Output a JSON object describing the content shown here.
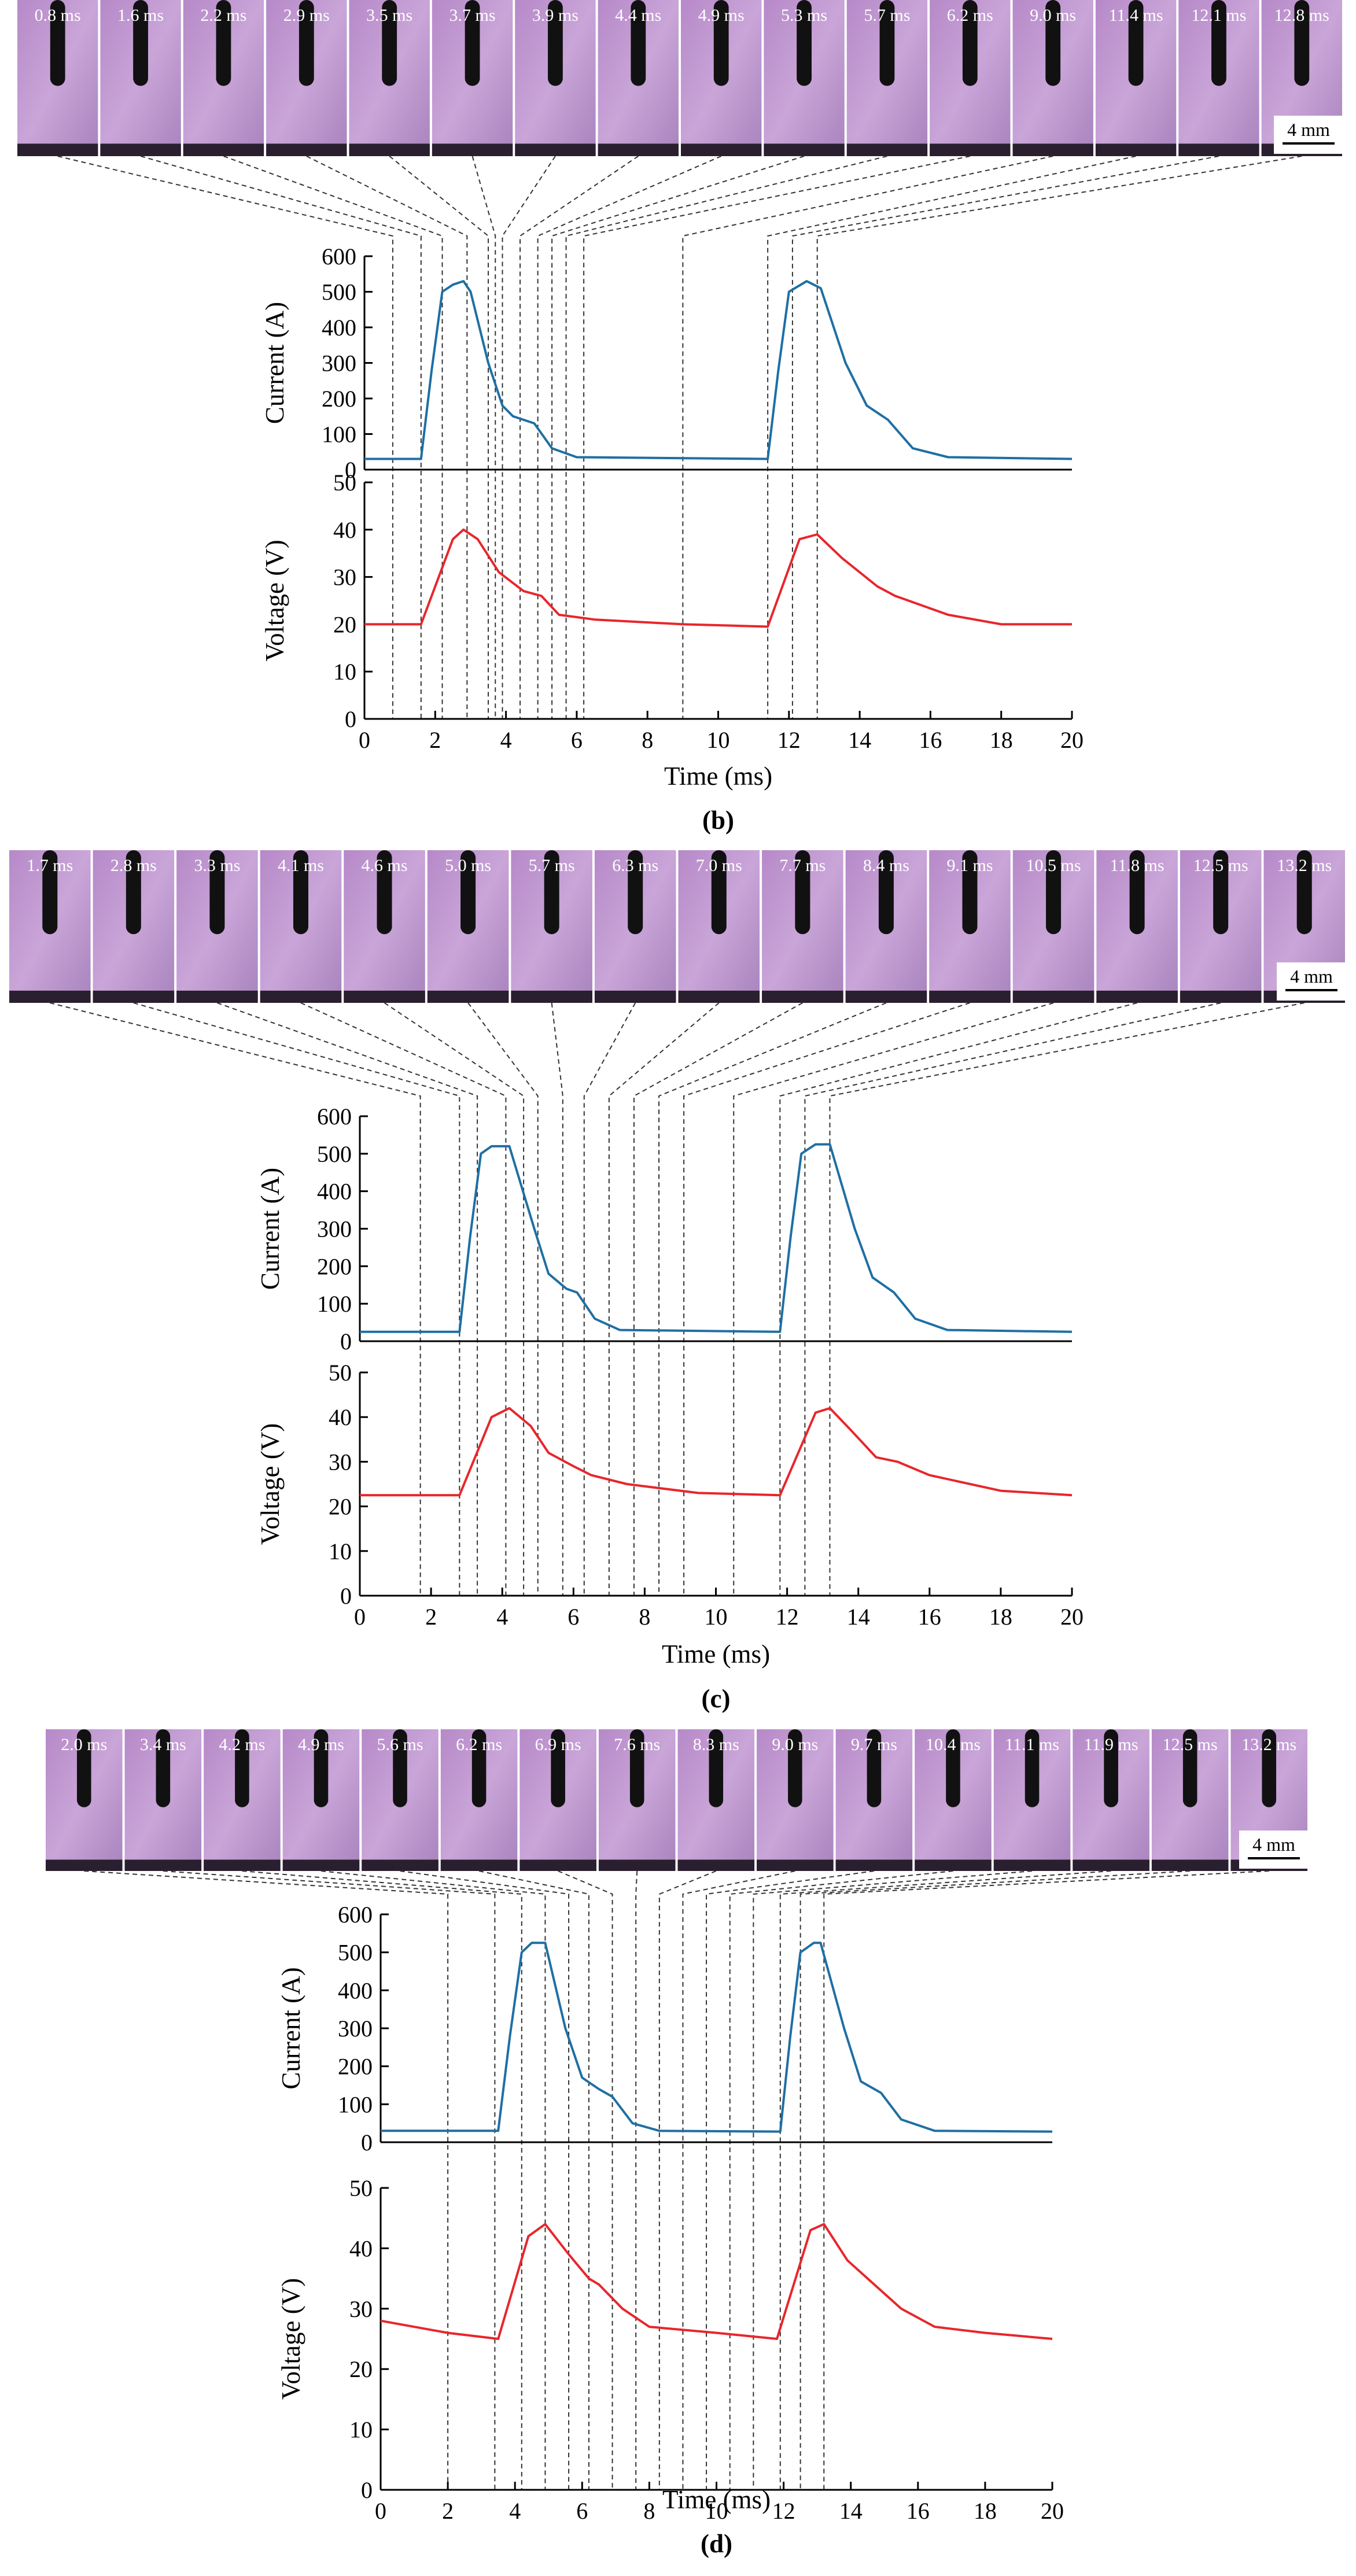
{
  "panels": [
    {
      "label": "(b)",
      "scale_bar": "4 mm",
      "frames": [
        {
          "label": "0.8 ms",
          "time": 0.8
        },
        {
          "label": "1.6 ms",
          "time": 1.6
        },
        {
          "label": "2.2 ms",
          "time": 2.2
        },
        {
          "label": "2.9 ms",
          "time": 2.9
        },
        {
          "label": "3.5 ms",
          "time": 3.5
        },
        {
          "label": "3.7 ms",
          "time": 3.7
        },
        {
          "label": "3.9 ms",
          "time": 3.9
        },
        {
          "label": "4.4 ms",
          "time": 4.4
        },
        {
          "label": "4.9 ms",
          "time": 4.9
        },
        {
          "label": "5.3 ms",
          "time": 5.3
        },
        {
          "label": "5.7 ms",
          "time": 5.7
        },
        {
          "label": "6.2 ms",
          "time": 6.2
        },
        {
          "label": "9.0 ms",
          "time": 9.0
        },
        {
          "label": "11.4 ms",
          "time": 11.4
        },
        {
          "label": "12.1 ms",
          "time": 12.1
        },
        {
          "label": "12.8 ms",
          "time": 12.8
        }
      ]
    },
    {
      "label": "(c)",
      "scale_bar": "4 mm",
      "frames": [
        {
          "label": "1.7 ms",
          "time": 1.7
        },
        {
          "label": "2.8 ms",
          "time": 2.8
        },
        {
          "label": "3.3 ms",
          "time": 3.3
        },
        {
          "label": "4.1 ms",
          "time": 4.1
        },
        {
          "label": "4.6 ms",
          "time": 4.6
        },
        {
          "label": "5.0 ms",
          "time": 5.0
        },
        {
          "label": "5.7 ms",
          "time": 5.7
        },
        {
          "label": "6.3 ms",
          "time": 6.3
        },
        {
          "label": "7.0 ms",
          "time": 7.0
        },
        {
          "label": "7.7 ms",
          "time": 7.7
        },
        {
          "label": "8.4 ms",
          "time": 8.4
        },
        {
          "label": "9.1 ms",
          "time": 9.1
        },
        {
          "label": "10.5 ms",
          "time": 10.5
        },
        {
          "label": "11.8 ms",
          "time": 11.8
        },
        {
          "label": "12.5 ms",
          "time": 12.5
        },
        {
          "label": "13.2 ms",
          "time": 13.2
        }
      ]
    },
    {
      "label": "(d)",
      "scale_bar": "4 mm",
      "frames": [
        {
          "label": "2.0 ms",
          "time": 2.0
        },
        {
          "label": "3.4 ms",
          "time": 3.4
        },
        {
          "label": "4.2 ms",
          "time": 4.2
        },
        {
          "label": "4.9 ms",
          "time": 4.9
        },
        {
          "label": "5.6 ms",
          "time": 5.6
        },
        {
          "label": "6.2 ms",
          "time": 6.2
        },
        {
          "label": "6.9 ms",
          "time": 6.9
        },
        {
          "label": "7.6 ms",
          "time": 7.6
        },
        {
          "label": "8.3 ms",
          "time": 8.3
        },
        {
          "label": "9.0 ms",
          "time": 9.0
        },
        {
          "label": "9.7 ms",
          "time": 9.7
        },
        {
          "label": "10.4 ms",
          "time": 10.4
        },
        {
          "label": "11.1 ms",
          "time": 11.1
        },
        {
          "label": "11.9 ms",
          "time": 11.9
        },
        {
          "label": "12.5 ms",
          "time": 12.5
        },
        {
          "label": "13.2 ms",
          "time": 13.2
        }
      ]
    }
  ],
  "chart_data": [
    {
      "type": "line",
      "ylabel": "Current (A)",
      "color": "#1f6fa3",
      "xlim": [
        0,
        20
      ],
      "ylim": [
        0,
        600
      ],
      "yticks": [
        0,
        100,
        200,
        300,
        400,
        500,
        600
      ],
      "x": [
        0,
        1.6,
        1.9,
        2.2,
        2.5,
        2.8,
        3.0,
        3.5,
        3.9,
        4.2,
        4.8,
        5.3,
        6.0,
        11.4,
        11.7,
        12.0,
        12.5,
        12.9,
        13.6,
        14.2,
        14.8,
        15.5,
        16.5,
        20
      ],
      "values": [
        30,
        30,
        280,
        500,
        520,
        530,
        500,
        300,
        180,
        150,
        130,
        60,
        35,
        30,
        280,
        500,
        530,
        510,
        300,
        180,
        140,
        60,
        35,
        30
      ]
    },
    {
      "type": "line",
      "ylabel": "Voltage (V)",
      "xlabel": "Time (ms)",
      "color": "#e8262b",
      "xlim": [
        0,
        20
      ],
      "ylim": [
        0,
        50
      ],
      "yticks": [
        0,
        10,
        20,
        30,
        40,
        50
      ],
      "xticks": [
        0,
        2,
        4,
        6,
        8,
        10,
        12,
        14,
        16,
        18,
        20
      ],
      "x": [
        0,
        1.6,
        2.5,
        2.8,
        3.2,
        3.8,
        4.5,
        5.0,
        5.5,
        6.5,
        9.0,
        11.4,
        12.3,
        12.8,
        13.5,
        14.5,
        15.0,
        16.5,
        18.0,
        20
      ],
      "values": [
        20,
        20,
        38,
        40,
        38,
        31,
        27,
        26,
        22,
        21,
        20,
        19.5,
        38,
        39,
        34,
        28,
        26,
        22,
        20,
        20
      ]
    },
    {
      "type": "line",
      "ylabel": "Current (A)",
      "color": "#1f6fa3",
      "xlim": [
        0,
        20
      ],
      "ylim": [
        0,
        600
      ],
      "yticks": [
        0,
        100,
        200,
        300,
        400,
        500,
        600
      ],
      "x": [
        0,
        2.8,
        3.1,
        3.4,
        3.7,
        4.2,
        4.9,
        5.3,
        5.8,
        6.1,
        6.6,
        7.3,
        11.8,
        12.1,
        12.4,
        12.8,
        13.2,
        13.9,
        14.4,
        15.0,
        15.6,
        16.5,
        20
      ],
      "values": [
        25,
        25,
        280,
        500,
        520,
        520,
        300,
        180,
        140,
        130,
        60,
        30,
        25,
        280,
        500,
        525,
        525,
        300,
        170,
        130,
        60,
        30,
        25
      ]
    },
    {
      "type": "line",
      "ylabel": "Voltage (V)",
      "xlabel": "Time (ms)",
      "color": "#e8262b",
      "xlim": [
        0,
        20
      ],
      "ylim": [
        0,
        50
      ],
      "yticks": [
        0,
        10,
        20,
        30,
        40,
        50
      ],
      "xticks": [
        0,
        2,
        4,
        6,
        8,
        10,
        12,
        14,
        16,
        18,
        20
      ],
      "x": [
        0,
        2.8,
        3.7,
        4.2,
        4.8,
        5.3,
        6.0,
        6.5,
        7.5,
        9.5,
        11.8,
        12.8,
        13.2,
        13.8,
        14.5,
        15.1,
        16.0,
        18.0,
        20
      ],
      "values": [
        22.5,
        22.5,
        40,
        42,
        38,
        32,
        29,
        27,
        25,
        23,
        22.5,
        41,
        42,
        37,
        31,
        30,
        27,
        23.5,
        22.5
      ]
    },
    {
      "type": "line",
      "ylabel": "Current (A)",
      "color": "#1f6fa3",
      "xlim": [
        0,
        20
      ],
      "ylim": [
        0,
        600
      ],
      "yticks": [
        0,
        100,
        200,
        300,
        400,
        500,
        600
      ],
      "x": [
        0,
        3.5,
        3.85,
        4.2,
        4.5,
        4.9,
        5.5,
        6.0,
        6.5,
        6.9,
        7.5,
        8.3,
        11.9,
        12.2,
        12.5,
        12.9,
        13.1,
        13.8,
        14.3,
        14.9,
        15.5,
        16.5,
        20
      ],
      "values": [
        30,
        30,
        280,
        500,
        525,
        525,
        300,
        170,
        140,
        120,
        50,
        30,
        28,
        280,
        500,
        525,
        525,
        300,
        160,
        130,
        60,
        30,
        28
      ]
    },
    {
      "type": "line",
      "ylabel": "Voltage (V)",
      "xlabel": "Time (ms)",
      "color": "#e8262b",
      "xlim": [
        0,
        20
      ],
      "ylim": [
        0,
        50
      ],
      "yticks": [
        0,
        10,
        20,
        30,
        40,
        50
      ],
      "xticks": [
        0,
        2,
        4,
        6,
        8,
        10,
        12,
        14,
        16,
        18,
        20
      ],
      "x": [
        0,
        2.0,
        3.5,
        4.4,
        4.9,
        5.6,
        6.2,
        6.5,
        7.2,
        8.0,
        10.0,
        11.8,
        12.8,
        13.2,
        13.9,
        14.5,
        15.5,
        16.5,
        18.0,
        20
      ],
      "values": [
        28,
        26,
        25,
        42,
        44,
        39,
        35,
        34,
        30,
        27,
        26,
        25,
        43,
        44,
        38,
        35,
        30,
        27,
        26,
        25
      ]
    }
  ]
}
